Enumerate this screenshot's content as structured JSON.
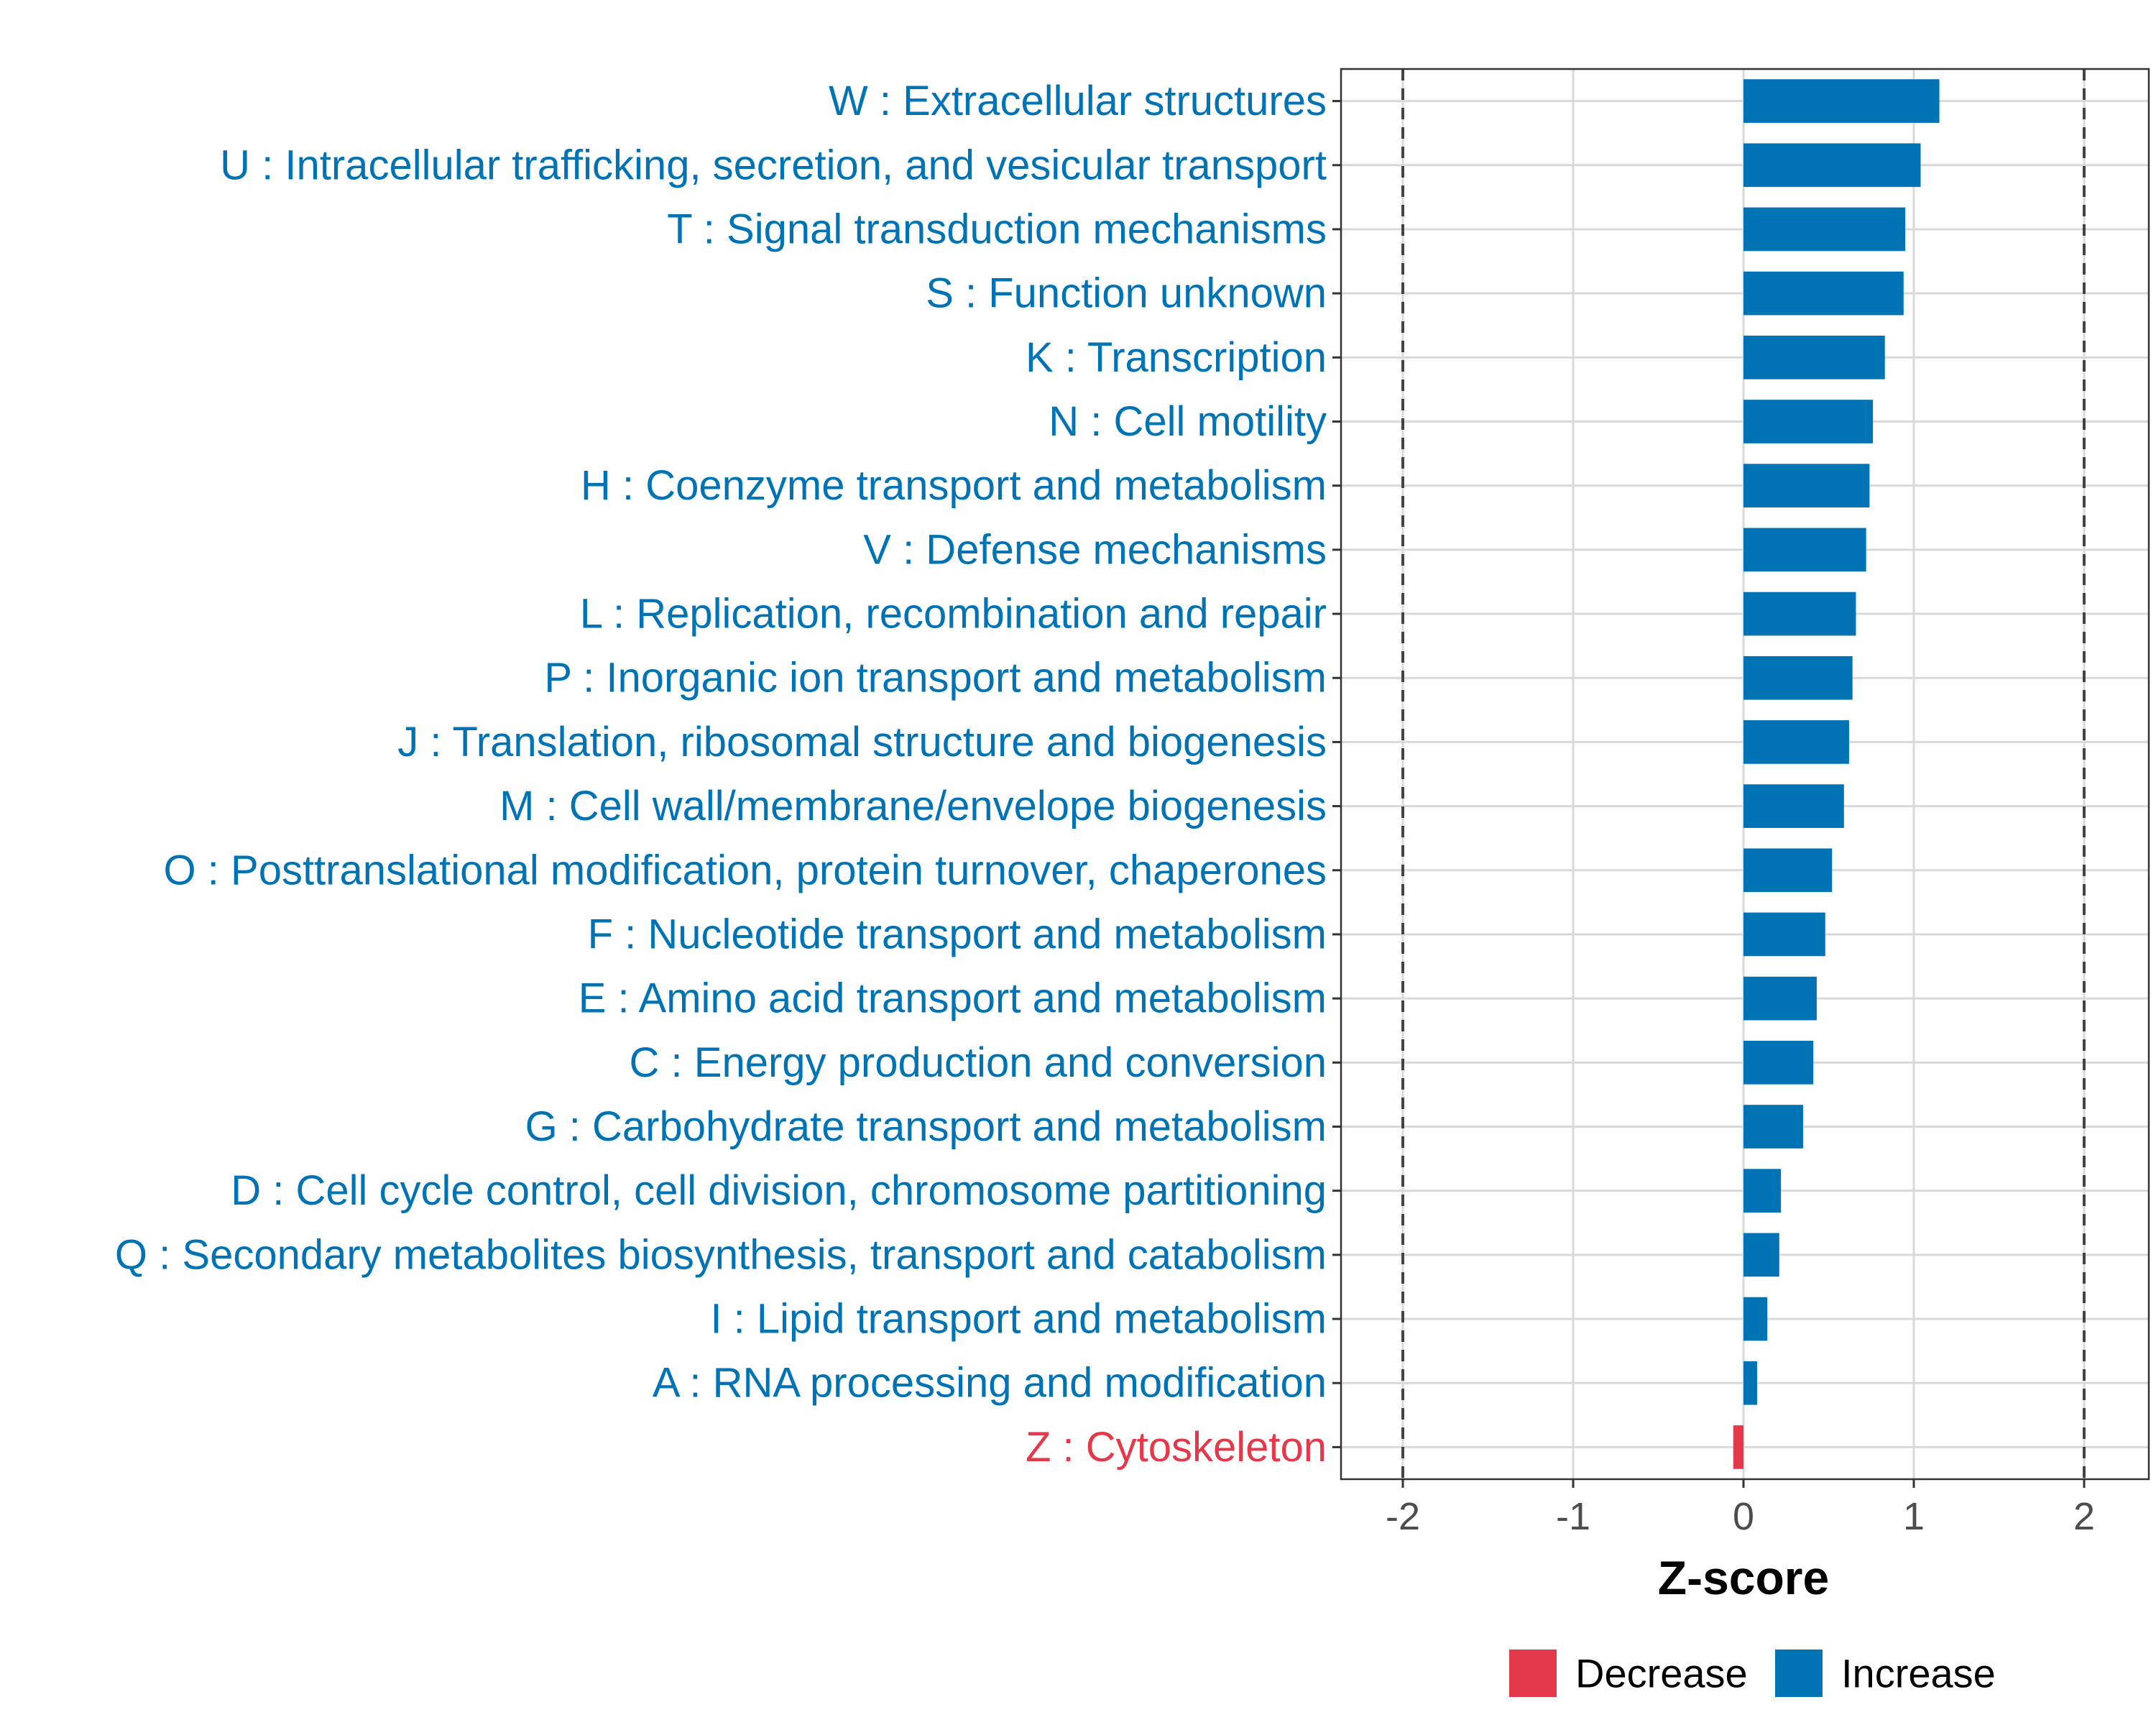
{
  "chart_data": {
    "type": "bar",
    "orientation": "horizontal",
    "xlabel": "Z-score",
    "ylabel": "",
    "xlim": [
      -2.35,
      2.35
    ],
    "xticks": [
      -2,
      -1,
      0,
      1,
      2
    ],
    "xtick_labels": [
      "-2",
      "-1",
      "0",
      "1",
      "2"
    ],
    "reference_lines": [
      -2,
      2
    ],
    "grid": true,
    "legend_position": "bottom",
    "colors": {
      "Increase": "#0073b5",
      "Decrease": "#e3394a"
    },
    "legend": [
      {
        "label": "Decrease",
        "color": "#e3394a"
      },
      {
        "label": "Increase",
        "color": "#0073b5"
      }
    ],
    "categories": [
      "W : Extracellular structures",
      "U : Intracellular trafficking, secretion, and vesicular transport",
      "T : Signal transduction mechanisms",
      "S : Function unknown",
      "K : Transcription",
      "N : Cell motility",
      "H : Coenzyme transport and metabolism",
      "V : Defense mechanisms",
      "L : Replication, recombination and repair",
      "P : Inorganic ion transport and metabolism",
      "J : Translation, ribosomal structure and biogenesis",
      "M : Cell wall/membrane/envelope biogenesis",
      "O : Posttranslational modification, protein turnover, chaperones",
      "F : Nucleotide transport and metabolism",
      "E : Amino acid transport and metabolism",
      "C : Energy production and conversion",
      "G : Carbohydrate transport and metabolism",
      "D : Cell cycle control, cell division, chromosome partitioning",
      "Q : Secondary metabolites biosynthesis, transport and catabolism",
      "I : Lipid transport and metabolism",
      "A : RNA processing and modification",
      "Z : Cytoskeleton"
    ],
    "values": [
      1.15,
      1.04,
      0.95,
      0.94,
      0.83,
      0.76,
      0.74,
      0.72,
      0.66,
      0.64,
      0.62,
      0.59,
      0.52,
      0.48,
      0.43,
      0.41,
      0.35,
      0.22,
      0.21,
      0.14,
      0.08,
      -0.06
    ],
    "direction": [
      "Increase",
      "Increase",
      "Increase",
      "Increase",
      "Increase",
      "Increase",
      "Increase",
      "Increase",
      "Increase",
      "Increase",
      "Increase",
      "Increase",
      "Increase",
      "Increase",
      "Increase",
      "Increase",
      "Increase",
      "Increase",
      "Increase",
      "Increase",
      "Increase",
      "Decrease"
    ]
  }
}
